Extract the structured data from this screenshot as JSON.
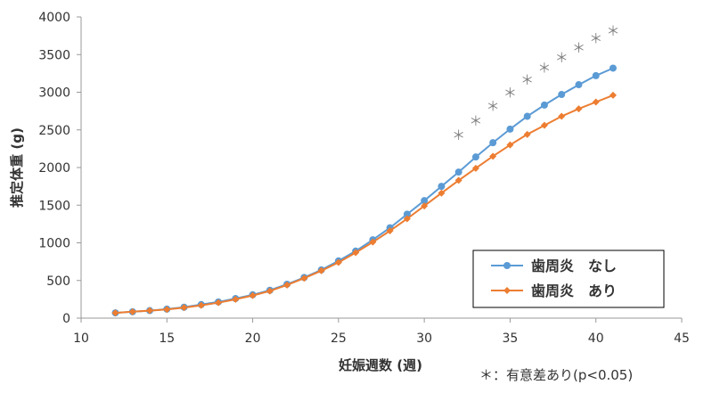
{
  "chart_data": {
    "type": "line",
    "xlabel": "妊娠週数 (週)",
    "ylabel": "推定体重 (g)",
    "xlim": [
      10,
      45
    ],
    "ylim": [
      0,
      4000
    ],
    "xticks": [
      10,
      15,
      20,
      25,
      30,
      35,
      40,
      45
    ],
    "yticks": [
      0,
      500,
      1000,
      1500,
      2000,
      2500,
      3000,
      3500,
      4000
    ],
    "grid": false,
    "legend_position": "bottom-right",
    "note": "＊：有意差あり(p<0.05)",
    "significance_marker": "＊",
    "significant_x": [
      32,
      33,
      34,
      35,
      36,
      37,
      38,
      39,
      40,
      41
    ],
    "significant_y": [
      2440,
      2630,
      2820,
      3000,
      3170,
      3330,
      3470,
      3600,
      3720,
      3820
    ],
    "x": [
      12,
      13,
      14,
      15,
      16,
      17,
      18,
      19,
      20,
      21,
      22,
      23,
      24,
      25,
      26,
      27,
      28,
      29,
      30,
      31,
      32,
      33,
      34,
      35,
      36,
      37,
      38,
      39,
      40,
      41
    ],
    "series": [
      {
        "name": "歯周炎　なし",
        "color": "#5b9bd5",
        "marker": "circle",
        "values": [
          70,
          85,
          100,
          120,
          145,
          180,
          215,
          260,
          310,
          370,
          450,
          540,
          640,
          760,
          890,
          1040,
          1200,
          1380,
          1560,
          1750,
          1940,
          2140,
          2330,
          2510,
          2680,
          2830,
          2970,
          3100,
          3220,
          3320
        ]
      },
      {
        "name": "歯周炎　あり",
        "color": "#ed7d31",
        "marker": "diamond",
        "values": [
          70,
          85,
          100,
          115,
          140,
          170,
          205,
          250,
          300,
          360,
          440,
          530,
          630,
          740,
          870,
          1010,
          1160,
          1320,
          1490,
          1660,
          1830,
          1990,
          2150,
          2300,
          2440,
          2560,
          2680,
          2780,
          2870,
          2960
        ]
      }
    ]
  }
}
